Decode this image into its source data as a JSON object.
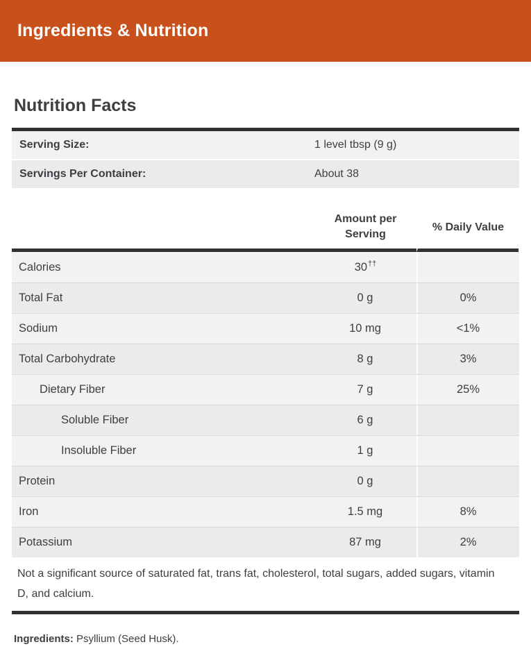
{
  "section_header": {
    "title": "Ingredients & Nutrition"
  },
  "colors": {
    "accent_orange": "#c8501a",
    "dark_border": "#2f3133",
    "row_shade_light": "#f2f2f2",
    "row_shade_dark": "#ebebeb",
    "text_dark": "#3b3e42"
  },
  "nutrition_facts": {
    "title": "Nutrition Facts",
    "serving_info": [
      {
        "label": "Serving Size:",
        "value": "1 level tbsp (9 g)"
      },
      {
        "label": "Servings Per Container:",
        "value": "About 38"
      }
    ],
    "columns": {
      "amount": "Amount per Serving",
      "daily_value": "% Daily Value"
    },
    "rows": [
      {
        "name": "Calories",
        "amount": "30",
        "amount_sup": "††",
        "daily_value": "",
        "indent": 0
      },
      {
        "name": "Total Fat",
        "amount": "0 g",
        "amount_sup": "",
        "daily_value": "0%",
        "indent": 0
      },
      {
        "name": "Sodium",
        "amount": "10 mg",
        "amount_sup": "",
        "daily_value": "<1%",
        "indent": 0
      },
      {
        "name": "Total Carbohydrate",
        "amount": "8 g",
        "amount_sup": "",
        "daily_value": "3%",
        "indent": 0
      },
      {
        "name": "Dietary Fiber",
        "amount": "7 g",
        "amount_sup": "",
        "daily_value": "25%",
        "indent": 1
      },
      {
        "name": "Soluble Fiber",
        "amount": "6 g",
        "amount_sup": "",
        "daily_value": "",
        "indent": 2
      },
      {
        "name": "Insoluble Fiber",
        "amount": "1 g",
        "amount_sup": "",
        "daily_value": "",
        "indent": 2
      },
      {
        "name": "Protein",
        "amount": "0 g",
        "amount_sup": "",
        "daily_value": "",
        "indent": 0
      },
      {
        "name": "Iron",
        "amount": "1.5 mg",
        "amount_sup": "",
        "daily_value": "8%",
        "indent": 0
      },
      {
        "name": "Potassium",
        "amount": "87 mg",
        "amount_sup": "",
        "daily_value": "2%",
        "indent": 0
      }
    ],
    "footnote": "Not a significant source of saturated fat, trans fat, cholesterol, total sugars, added sugars, vitamin D, and calcium.",
    "ingredients": {
      "label": "Ingredients:",
      "value": "Psyllium (Seed Husk)."
    }
  }
}
